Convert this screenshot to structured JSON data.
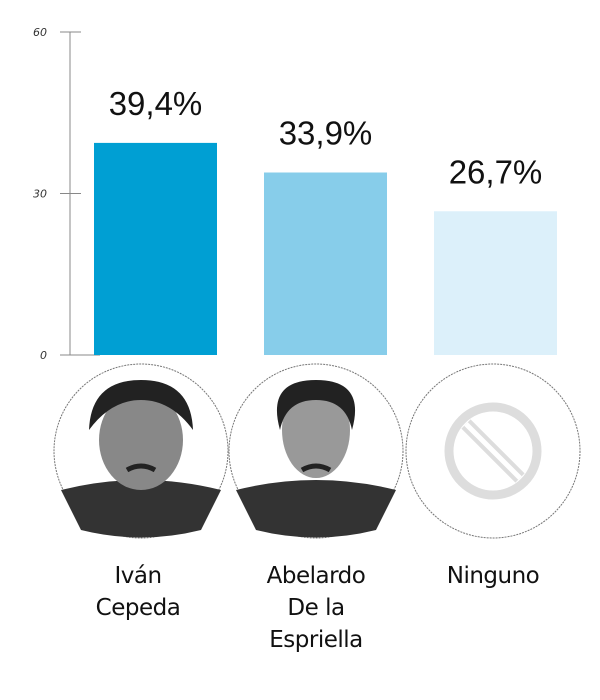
{
  "chart_data": {
    "type": "bar",
    "title": "",
    "xlabel": "",
    "ylabel": "",
    "ylim": [
      0,
      60
    ],
    "yticks": [
      0,
      30,
      60
    ],
    "ytick_labels": [
      "0",
      "30",
      "60"
    ],
    "grid": false,
    "categories": [
      "Iván Cepeda",
      "Abelardo De la Espriella",
      "Ninguno"
    ],
    "category_lines": [
      [
        "Iván",
        "Cepeda"
      ],
      [
        "Abelardo",
        "De la",
        "Espriella"
      ],
      [
        "Ninguno"
      ]
    ],
    "values": [
      39.4,
      33.9,
      26.7
    ],
    "value_labels": [
      "39,4%",
      "33,9%",
      "26,7%"
    ],
    "colors": [
      "#009fd3",
      "#87cdea",
      "#dcf0fa"
    ],
    "icons": [
      "portrait-photo",
      "portrait-photo",
      "prohibited-icon"
    ]
  }
}
